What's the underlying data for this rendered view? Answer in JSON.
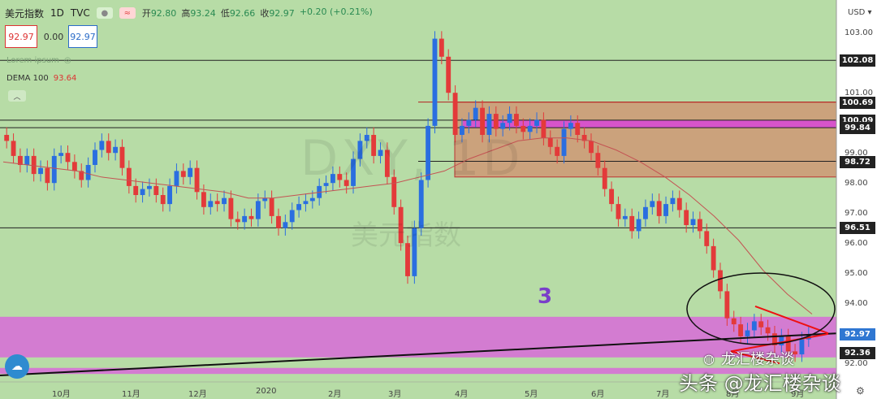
{
  "header": {
    "symbol": "美元指数",
    "interval": "1D",
    "source": "TVC",
    "icons": [
      "dot-icon",
      "wave-icon"
    ],
    "ohlc": [
      {
        "label": "开",
        "value": "92.80"
      },
      {
        "label": "高",
        "value": "93.24"
      },
      {
        "label": "低",
        "value": "92.66"
      },
      {
        "label": "收",
        "value": "92.97"
      },
      {
        "label": "",
        "value": "+0.20 (+0.21%)"
      }
    ]
  },
  "price_boxes": {
    "bid": "92.97",
    "spread": "0.00",
    "ask": "92.97"
  },
  "indicators": [
    {
      "label": "Lorem ipsum",
      "value": ""
    },
    {
      "label": "DEMA 100",
      "value": "93.64"
    }
  ],
  "watermark": {
    "big": "DXY, 1D",
    "sub": "美元指数"
  },
  "annotation": "3",
  "footer_watermark": {
    "small": "龙汇楼杂谈",
    "main": "头条 @龙汇楼杂谈"
  },
  "right_axis": {
    "currency": "USD",
    "ticks": [
      "103.00",
      "102.08",
      "101.00",
      "100.69",
      "100.09",
      "99.84",
      "99.00",
      "98.72",
      "98.00",
      "97.00",
      "96.51",
      "96.00",
      "95.00",
      "94.00",
      "92.97",
      "92.36",
      "92.00"
    ],
    "badges": [
      {
        "value": "102.08",
        "style": "black"
      },
      {
        "value": "100.69",
        "style": "black"
      },
      {
        "value": "100.09",
        "style": "black"
      },
      {
        "value": "99.84",
        "style": "black"
      },
      {
        "value": "98.72",
        "style": "black"
      },
      {
        "value": "96.51",
        "style": "black"
      },
      {
        "value": "92.97",
        "style": "blue"
      },
      {
        "value": "92.36",
        "style": "black"
      }
    ]
  },
  "months": [
    "10月",
    "11月",
    "12月",
    "2020",
    "2月",
    "3月",
    "4月",
    "5月",
    "6月",
    "7月",
    "8月",
    "9月"
  ],
  "chart_data": {
    "type": "candlestick",
    "title": "美元指数 1D TVC",
    "ylim": [
      91.6,
      103.6
    ],
    "y_ticks": [
      92,
      93,
      94,
      95,
      96,
      97,
      98,
      99,
      100,
      101,
      102,
      103
    ],
    "horizontal_lines": [
      102.08,
      100.69,
      100.09,
      99.84,
      98.72,
      96.51
    ],
    "zones": [
      {
        "low": 98.2,
        "high": 100.69,
        "color": "#d28f6d",
        "label": "resistance box"
      },
      {
        "low": 99.84,
        "high": 100.09,
        "color": "#d946d9",
        "label": "magenta band"
      },
      {
        "low": 92.2,
        "high": 93.55,
        "color": "#d86bd8",
        "label": "support zone"
      },
      {
        "low": 91.65,
        "high": 91.85,
        "color": "#d86bd8",
        "label": "lower band"
      }
    ],
    "close_series": [
      99.4,
      98.9,
      98.6,
      98.9,
      98.3,
      98.5,
      98.0,
      98.9,
      99.0,
      98.7,
      98.4,
      98.1,
      98.6,
      99.1,
      99.4,
      99.0,
      99.2,
      98.5,
      97.9,
      97.6,
      97.8,
      97.9,
      97.6,
      97.3,
      97.9,
      98.4,
      98.2,
      98.5,
      97.7,
      97.2,
      97.4,
      97.3,
      97.5,
      96.8,
      96.7,
      96.9,
      96.8,
      97.4,
      97.5,
      96.9,
      96.5,
      96.7,
      97.1,
      97.3,
      97.4,
      97.5,
      97.9,
      98.0,
      98.3,
      98.1,
      97.9,
      98.8,
      99.4,
      99.6,
      98.9,
      99.1,
      98.2,
      97.2,
      96.0,
      94.9,
      96.5,
      98.1,
      99.9,
      102.8,
      102.2,
      101.0,
      99.6,
      99.9,
      100.1,
      100.5,
      99.6,
      100.3,
      99.8,
      100.0,
      100.3,
      99.9,
      99.7,
      99.9,
      100.1,
      99.5,
      99.2,
      98.9,
      99.8,
      100.0,
      99.6,
      99.4,
      99.0,
      98.5,
      97.8,
      97.3,
      96.8,
      96.9,
      96.4,
      96.8,
      97.2,
      97.4,
      96.9,
      97.3,
      97.5,
      97.1,
      96.6,
      96.8,
      96.4,
      95.9,
      95.1,
      94.4,
      93.5,
      93.3,
      92.9,
      93.1,
      93.4,
      93.2,
      93.0,
      92.6,
      92.9,
      92.4,
      92.3,
      92.8,
      92.97
    ],
    "dema_100": [
      98.7,
      98.6,
      98.5,
      98.4,
      98.2,
      98.1,
      98.0,
      97.9,
      97.8,
      97.7,
      97.5,
      97.5,
      97.6,
      97.7,
      97.8,
      97.9,
      98.0,
      98.2,
      98.4,
      98.8,
      99.1,
      99.4,
      99.5,
      99.5,
      99.4,
      99.1,
      98.7,
      98.2,
      97.6,
      96.9,
      96.1,
      95.1,
      94.3,
      93.64
    ],
    "trendline_start": 91.6,
    "trendline_end": 93.0
  }
}
